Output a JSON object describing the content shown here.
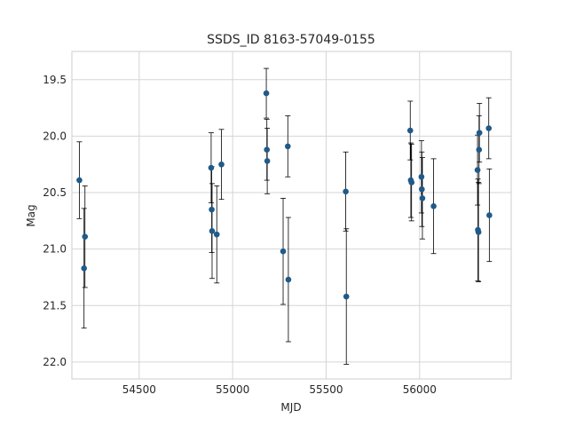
{
  "chart_data": {
    "type": "scatter",
    "title": "SSDS_ID 8163-57049-0155",
    "xlabel": "MJD",
    "ylabel": "Mag",
    "xlim": [
      54140,
      56490
    ],
    "ylim": [
      22.15,
      19.25
    ],
    "y_inverted": true,
    "grid": true,
    "xticks": [
      54500,
      55000,
      55500,
      56000
    ],
    "yticks": [
      19.5,
      20.0,
      20.5,
      21.0,
      21.5,
      22.0
    ],
    "xtick_labels": [
      "54500",
      "55000",
      "55500",
      "56000"
    ],
    "ytick_labels": [
      "19.5",
      "20.0",
      "20.5",
      "21.0",
      "21.5",
      "22.0"
    ],
    "point_color": "#1f5a8a",
    "errorbar_color": "#000000",
    "points": [
      {
        "x": 54180,
        "y": 20.39,
        "err": 0.34
      },
      {
        "x": 54205,
        "y": 21.17,
        "err": 0.53
      },
      {
        "x": 54210,
        "y": 20.89,
        "err": 0.45
      },
      {
        "x": 54885,
        "y": 20.28,
        "err": 0.31
      },
      {
        "x": 54888,
        "y": 20.65,
        "err": 0.38
      },
      {
        "x": 54890,
        "y": 20.84,
        "err": 0.42
      },
      {
        "x": 54915,
        "y": 20.87,
        "err": 0.43
      },
      {
        "x": 54940,
        "y": 20.25,
        "err": 0.31
      },
      {
        "x": 55180,
        "y": 19.62,
        "err": 0.22
      },
      {
        "x": 55183,
        "y": 20.12,
        "err": 0.27
      },
      {
        "x": 55185,
        "y": 20.22,
        "err": 0.29
      },
      {
        "x": 55270,
        "y": 21.02,
        "err": 0.47
      },
      {
        "x": 55295,
        "y": 20.09,
        "err": 0.27
      },
      {
        "x": 55298,
        "y": 21.27,
        "err": 0.55
      },
      {
        "x": 55605,
        "y": 20.49,
        "err": 0.35
      },
      {
        "x": 55608,
        "y": 21.42,
        "err": 0.6
      },
      {
        "x": 55950,
        "y": 19.95,
        "err": 0.26
      },
      {
        "x": 55953,
        "y": 20.39,
        "err": 0.33
      },
      {
        "x": 55957,
        "y": 20.41,
        "err": 0.34
      },
      {
        "x": 56010,
        "y": 20.36,
        "err": 0.32
      },
      {
        "x": 56012,
        "y": 20.47,
        "err": 0.33
      },
      {
        "x": 56015,
        "y": 20.55,
        "err": 0.36
      },
      {
        "x": 56075,
        "y": 20.62,
        "err": 0.42
      },
      {
        "x": 56310,
        "y": 20.3,
        "err": 0.31
      },
      {
        "x": 56312,
        "y": 20.83,
        "err": 0.45
      },
      {
        "x": 56315,
        "y": 20.85,
        "err": 0.44
      },
      {
        "x": 56318,
        "y": 20.12,
        "err": 0.3
      },
      {
        "x": 56320,
        "y": 19.97,
        "err": 0.26
      },
      {
        "x": 56370,
        "y": 19.93,
        "err": 0.27
      },
      {
        "x": 56373,
        "y": 20.7,
        "err": 0.41
      }
    ]
  }
}
